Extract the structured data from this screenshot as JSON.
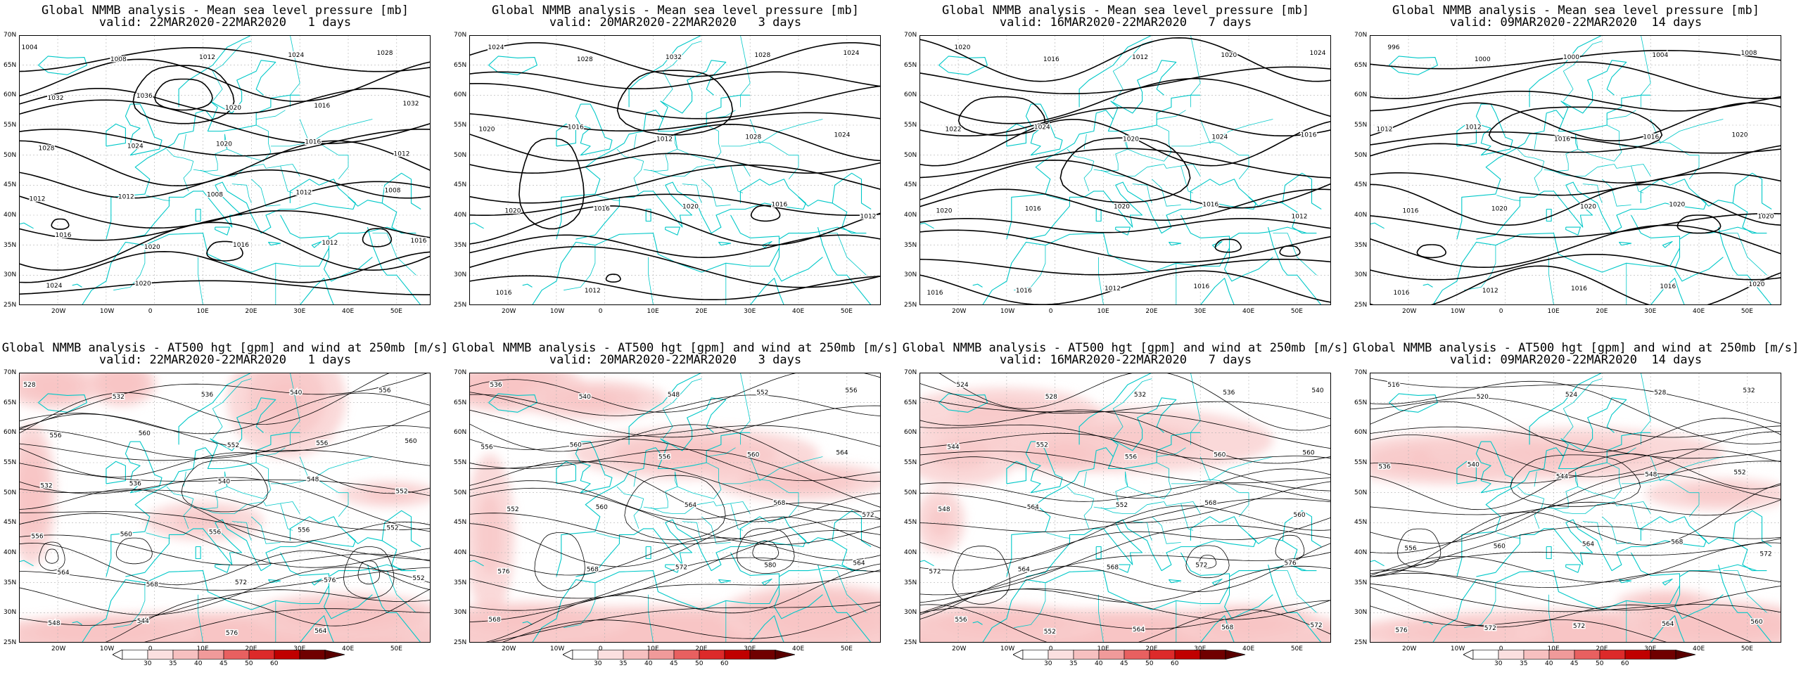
{
  "colors": {
    "coast": "#00c8c8",
    "contour": "#000000",
    "grid": "#b0b0b0",
    "wind_ramp": [
      "#ffffff",
      "#f9d0d0",
      "#f5a8a8",
      "#ef7070",
      "#e53030",
      "#d00000",
      "#8a0000"
    ]
  },
  "axes": {
    "lat_labels": [
      "70N",
      "65N",
      "60N",
      "55N",
      "50N",
      "45N",
      "40N",
      "35N",
      "30N",
      "25N"
    ],
    "lon_labels": [
      "20W",
      "10W",
      "0",
      "10E",
      "20E",
      "30E",
      "40E",
      "50E"
    ]
  },
  "mslp": {
    "title": "Global NMMB analysis - Mean sea level pressure [mb]",
    "panels": [
      {
        "valid": "valid: 22MAR2020-22MAR2020   1 days",
        "contour_labels": [
          "1004",
          "1008",
          "1012",
          "1024",
          "1028",
          "1032",
          "1036",
          "1020",
          "1016",
          "1032",
          "1028",
          "1024",
          "1020",
          "1016",
          "1012",
          "1012",
          "1012",
          "1008",
          "1012",
          "1008",
          "1016",
          "1020",
          "1016",
          "1012",
          "1016",
          "1024",
          "1020"
        ]
      },
      {
        "valid": "valid: 20MAR2020-22MAR2020   3 days",
        "contour_labels": [
          "1024",
          "1028",
          "1032",
          "1028",
          "1024",
          "1020",
          "1016",
          "1012",
          "1028",
          "1024",
          "1020",
          "1016",
          "1020",
          "1016",
          "1012",
          "1016",
          "1012"
        ]
      },
      {
        "valid": "valid: 16MAR2020-22MAR2020   7 days",
        "contour_labels": [
          "1020",
          "1016",
          "1012",
          "1020",
          "1024",
          "1022",
          "1024",
          "1020",
          "1024",
          "1016",
          "1020",
          "1016",
          "1020",
          "1016",
          "1012",
          "1016",
          "1016",
          "1012",
          "1016"
        ]
      },
      {
        "valid": "valid: 09MAR2020-22MAR2020  14 days",
        "contour_labels": [
          "996",
          "1000",
          "1000",
          "1004",
          "1008",
          "1012",
          "1012",
          "1016",
          "1016",
          "1020",
          "1016",
          "1020",
          "1020",
          "1020",
          "1020",
          "1016",
          "1012",
          "1016",
          "1016",
          "1020"
        ]
      }
    ]
  },
  "z500": {
    "title": "Global NMMB analysis - AT500 hgt [gpm] and wind at 250mb [m/s]",
    "panels": [
      {
        "valid": "valid: 22MAR2020-22MAR2020   1 days",
        "contour_labels": [
          "528",
          "532",
          "536",
          "540",
          "556",
          "556",
          "560",
          "552",
          "556",
          "560",
          "532",
          "536",
          "540",
          "548",
          "552",
          "556",
          "560",
          "556",
          "556",
          "552",
          "564",
          "568",
          "572",
          "576",
          "552",
          "548",
          "544",
          "576",
          "564"
        ]
      },
      {
        "valid": "valid: 20MAR2020-22MAR2020   3 days",
        "contour_labels": [
          "536",
          "540",
          "548",
          "552",
          "556",
          "556",
          "560",
          "556",
          "560",
          "564",
          "552",
          "560",
          "564",
          "568",
          "572",
          "576",
          "568",
          "572",
          "580",
          "564",
          "568"
        ]
      },
      {
        "valid": "valid: 16MAR2020-22MAR2020   7 days",
        "contour_labels": [
          "524",
          "528",
          "532",
          "536",
          "540",
          "544",
          "552",
          "556",
          "560",
          "560",
          "548",
          "564",
          "552",
          "568",
          "560",
          "572",
          "564",
          "568",
          "572",
          "576",
          "556",
          "552",
          "564",
          "568",
          "572"
        ]
      },
      {
        "valid": "valid: 09MAR2020-22MAR2020  14 days",
        "contour_labels": [
          "516",
          "520",
          "524",
          "528",
          "532",
          "536",
          "540",
          "544",
          "548",
          "552",
          "556",
          "560",
          "564",
          "568",
          "572",
          "576",
          "572",
          "572",
          "564",
          "560"
        ]
      }
    ],
    "colorbar_labels": [
      "30",
      "35",
      "40",
      "45",
      "50",
      "60"
    ]
  }
}
